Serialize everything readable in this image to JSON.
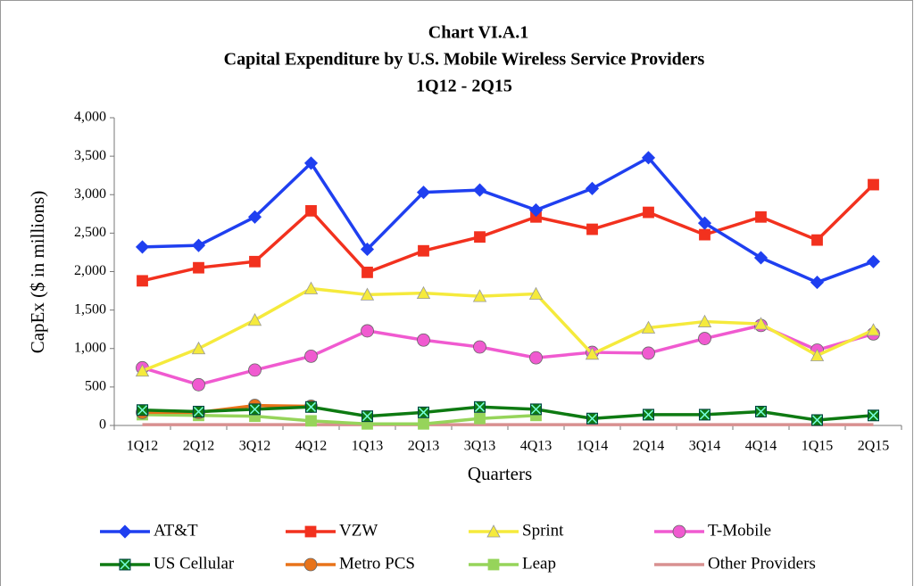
{
  "chart_data": {
    "type": "line",
    "title": "Chart VI.A.1",
    "subtitle": "Capital Expenditure by U.S. Mobile Wireless Service Providers",
    "period": "1Q12 - 2Q15",
    "x_label": "Quarters",
    "y_label": "CapEx ($ in millions)",
    "categories": [
      "1Q12",
      "2Q12",
      "3Q12",
      "4Q12",
      "1Q13",
      "2Q13",
      "3Q13",
      "4Q13",
      "1Q14",
      "2Q14",
      "3Q14",
      "4Q14",
      "1Q15",
      "2Q15"
    ],
    "ylim": [
      0,
      4000
    ],
    "yticks": [
      0,
      500,
      {
        "value": 1000,
        "label": "1,000"
      },
      {
        "value": 1500,
        "label": "1,500"
      },
      {
        "value": 2000,
        "label": "2,000"
      },
      {
        "value": 2500,
        "label": "2,500"
      },
      {
        "value": 3000,
        "label": "3,000"
      },
      {
        "value": 3500,
        "label": "3,500"
      },
      {
        "value": 4000,
        "label": "4,000"
      }
    ],
    "grid": false,
    "legend": "bottom",
    "series": [
      {
        "name": "AT&T",
        "color": "#1f3ff0",
        "marker": "diamond",
        "values": [
          2320,
          2340,
          2710,
          3410,
          2290,
          3030,
          3060,
          2800,
          3080,
          3480,
          2630,
          2180,
          1860,
          2130
        ]
      },
      {
        "name": "VZW",
        "color": "#f2311e",
        "marker": "square",
        "values": [
          1880,
          2050,
          2130,
          2790,
          1990,
          2270,
          2450,
          2710,
          2550,
          2770,
          2480,
          2710,
          2410,
          3130
        ]
      },
      {
        "name": "Sprint",
        "color": "#f5ea3c",
        "marker": "triangle",
        "values": [
          710,
          1000,
          1370,
          1780,
          1700,
          1720,
          1680,
          1710,
          930,
          1270,
          1350,
          1320,
          910,
          1240
        ]
      },
      {
        "name": "T-Mobile",
        "color": "#f05ad0",
        "marker": "circle",
        "values": [
          750,
          530,
          720,
          900,
          1230,
          1110,
          1020,
          880,
          950,
          940,
          1130,
          1300,
          980,
          1190
        ]
      },
      {
        "name": "US Cellular",
        "color": "#0e7a12",
        "marker": "xsquare",
        "values": [
          200,
          180,
          210,
          240,
          120,
          170,
          240,
          210,
          90,
          140,
          140,
          180,
          70,
          130
        ]
      },
      {
        "name": "Metro PCS",
        "color": "#e8731a",
        "marker": "circle",
        "values": [
          170,
          170,
          260,
          250,
          null,
          null,
          null,
          null,
          null,
          null,
          null,
          null,
          null,
          null
        ]
      },
      {
        "name": "Leap",
        "color": "#96d45a",
        "marker": "square",
        "values": [
          140,
          130,
          120,
          60,
          20,
          20,
          90,
          130,
          null,
          null,
          null,
          null,
          null,
          null
        ]
      },
      {
        "name": "Other Providers",
        "color": "#d89090",
        "marker": "none",
        "values": [
          10,
          10,
          10,
          10,
          10,
          10,
          10,
          10,
          10,
          10,
          10,
          10,
          10,
          10
        ]
      }
    ]
  }
}
